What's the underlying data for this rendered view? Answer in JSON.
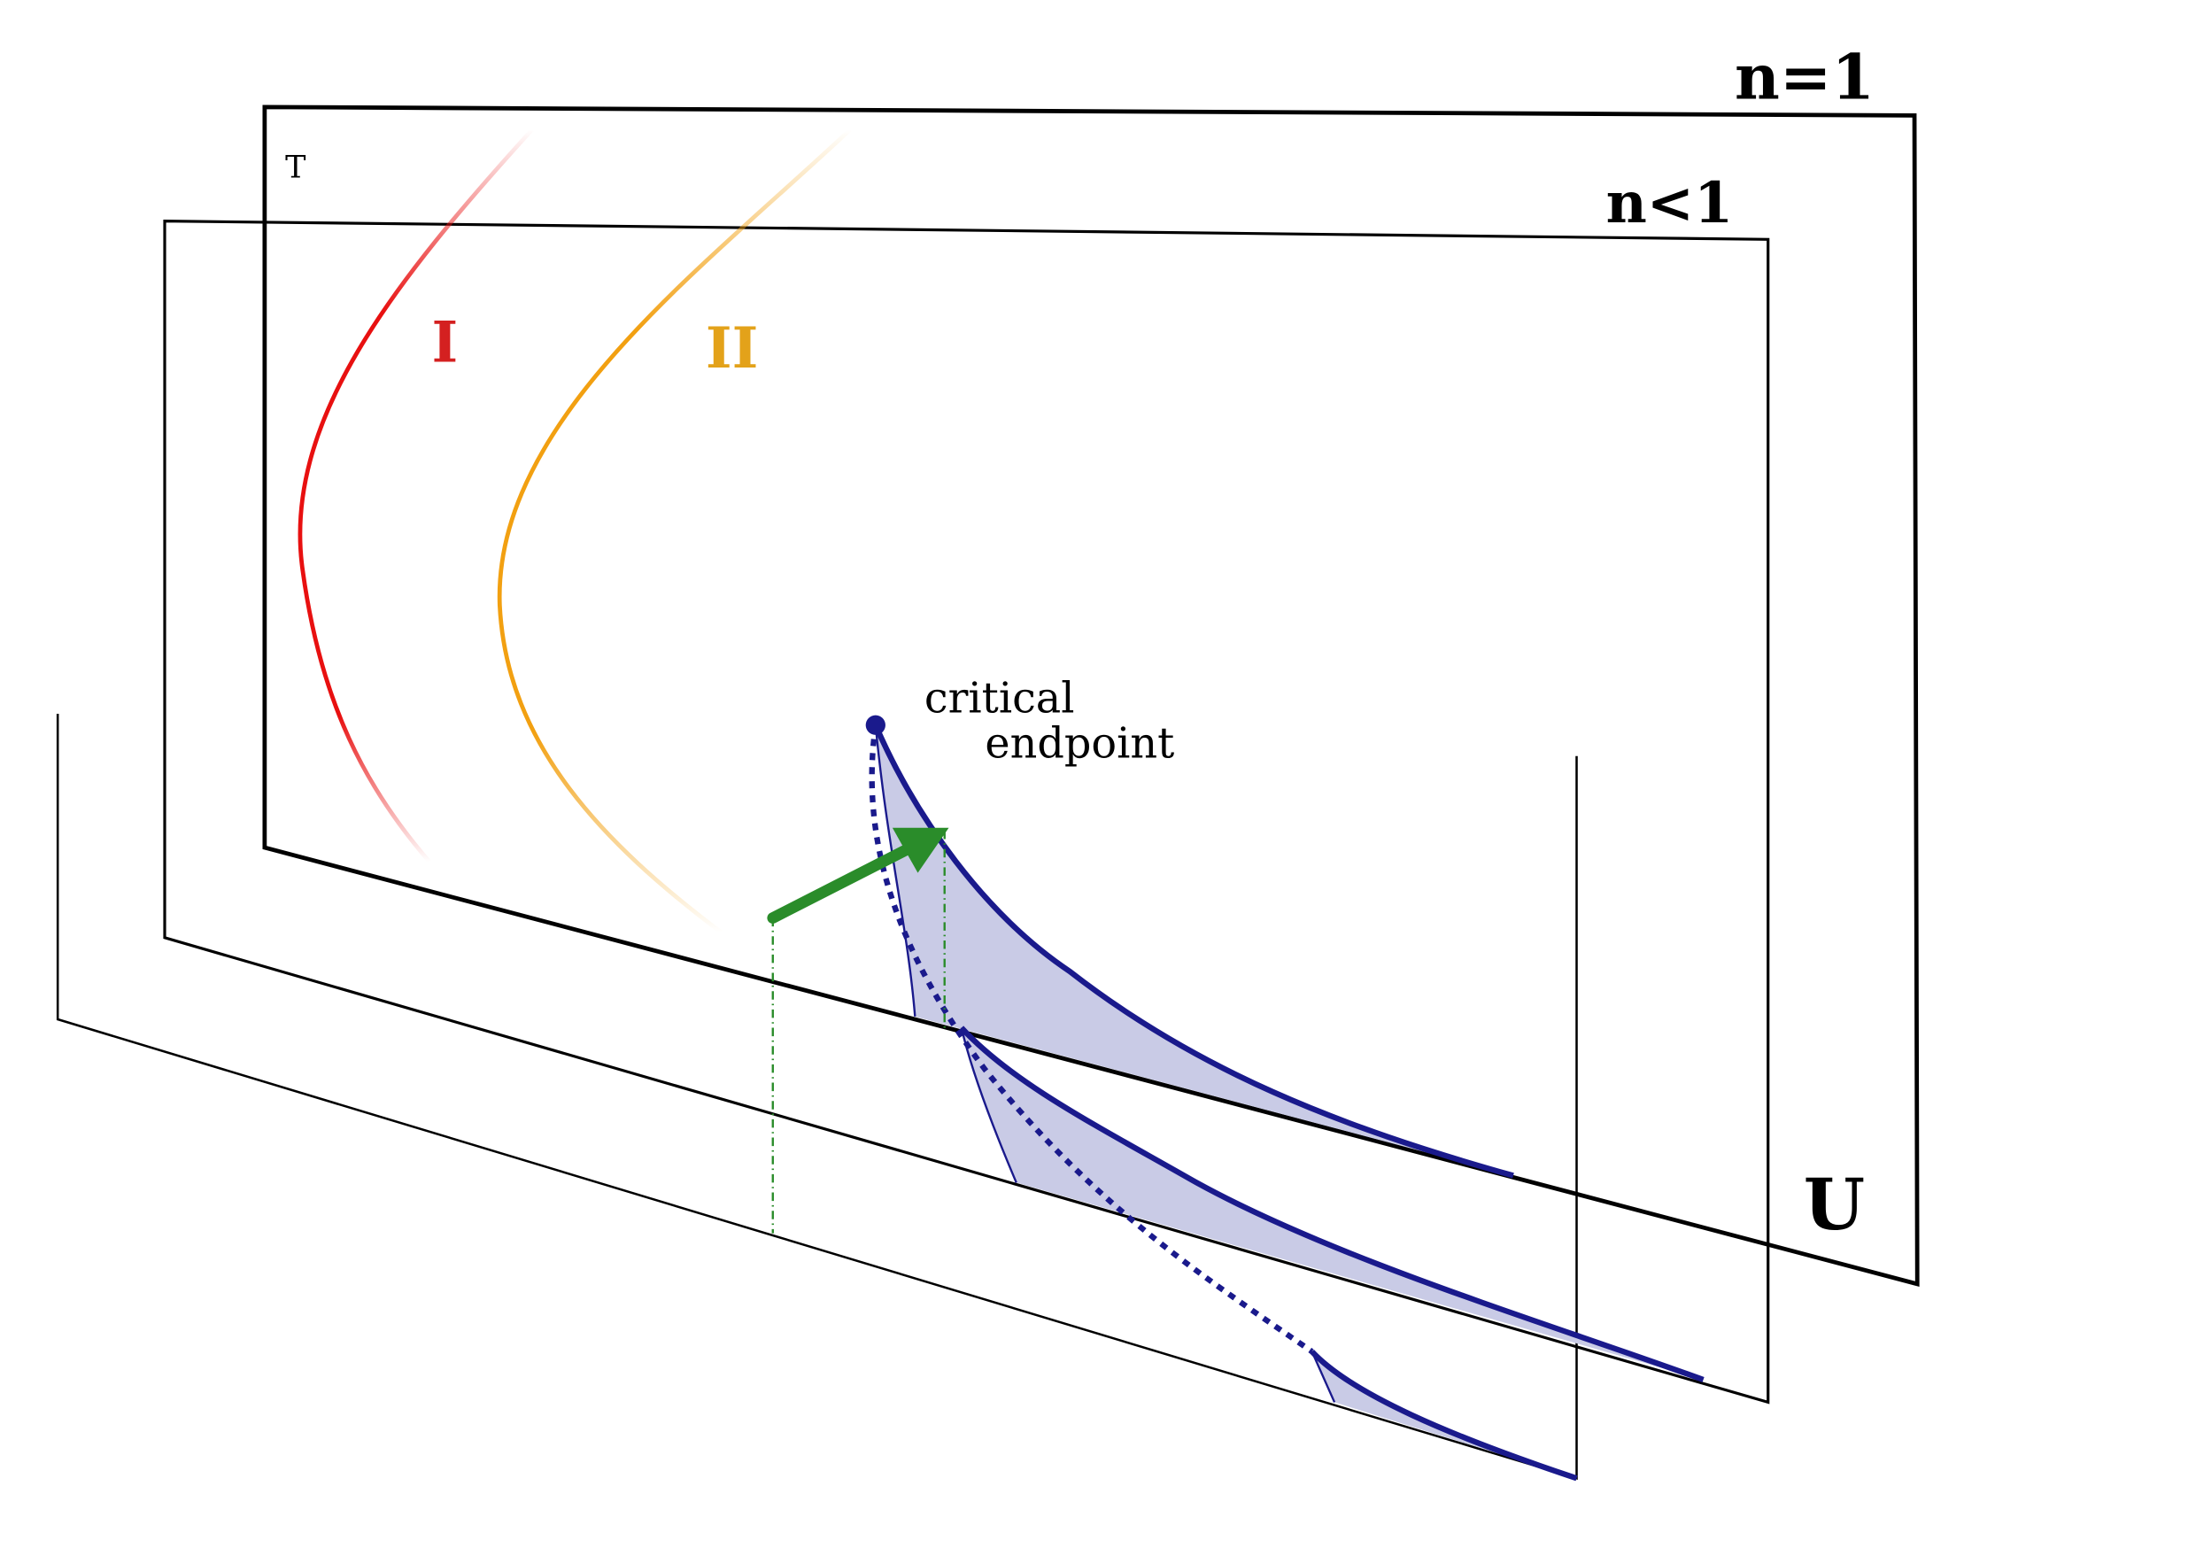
{
  "labels": {
    "plane_n1": "n=1",
    "plane_n_lt_1": "n<1",
    "axis_t": "T",
    "axis_u": "U",
    "region_1": "I",
    "region_2": "II",
    "critical_1": "critical",
    "critical_2": "endpoint"
  }
}
